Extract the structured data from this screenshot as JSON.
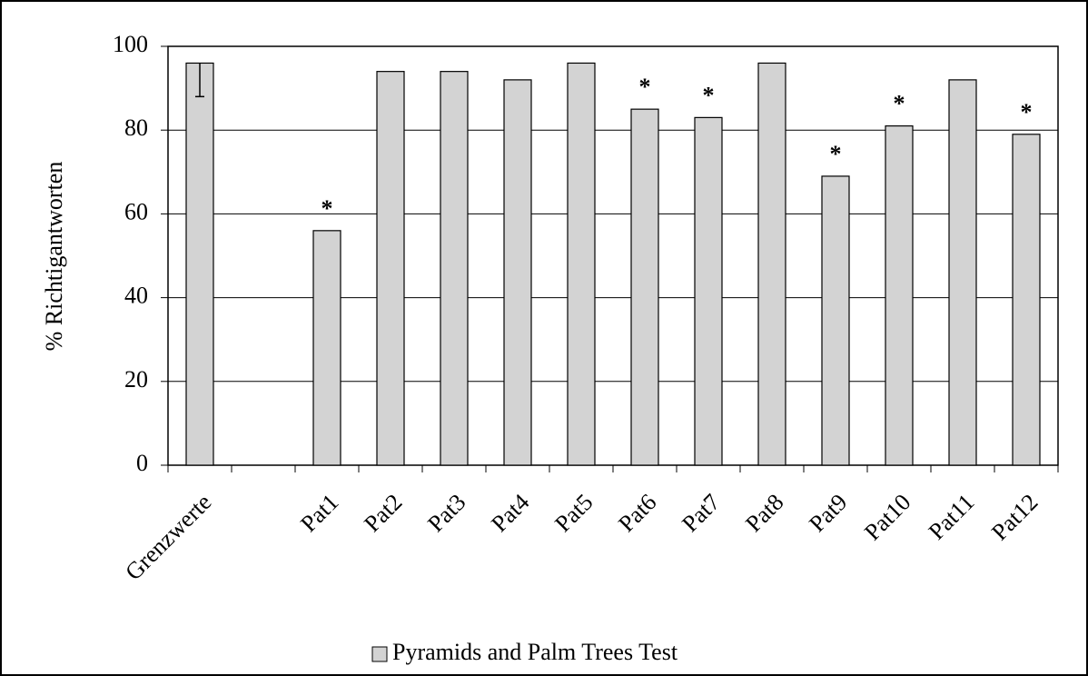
{
  "chart_data": {
    "type": "bar",
    "categories": [
      "Grenzwerte",
      null,
      "Pat1",
      "Pat2",
      "Pat3",
      "Pat4",
      "Pat5",
      "Pat6",
      "Pat7",
      "Pat8",
      "Pat9",
      "Pat10",
      "Pat11",
      "Pat12"
    ],
    "series": [
      {
        "name": "Pyramids and Palm Trees Test",
        "color": "#d3d3d3",
        "values": [
          96,
          null,
          56,
          94,
          94,
          92,
          96,
          85,
          83,
          96,
          69,
          81,
          92,
          79
        ],
        "errors": [
          8,
          null,
          null,
          null,
          null,
          null,
          null,
          null,
          null,
          null,
          null,
          null,
          null,
          null
        ],
        "annotations": [
          null,
          null,
          "*",
          null,
          null,
          null,
          null,
          "*",
          "*",
          null,
          "*",
          "*",
          null,
          "*"
        ]
      }
    ],
    "y_label": "% Richtigantworten",
    "ylim": [
      0,
      100
    ],
    "yticks": [
      0,
      20,
      40,
      60,
      80,
      100
    ],
    "grid": true,
    "legend": "bottom"
  }
}
